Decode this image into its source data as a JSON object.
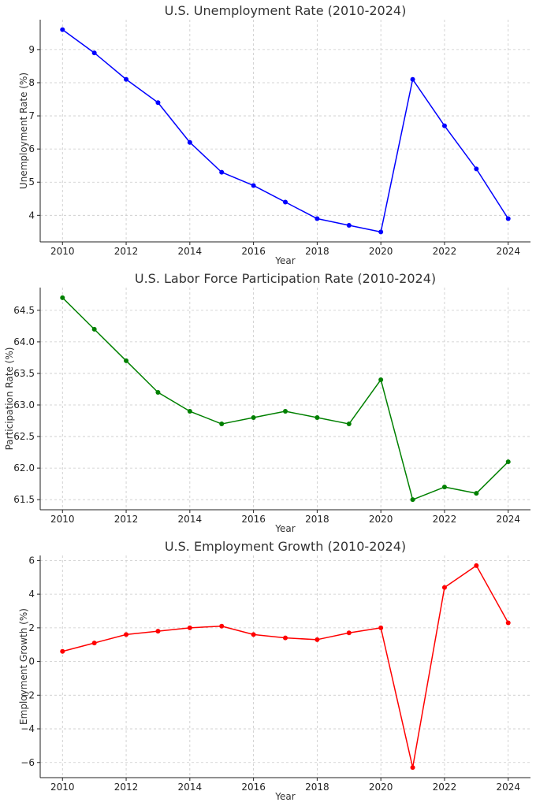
{
  "chart_data": [
    {
      "type": "line",
      "title": "U.S. Unemployment Rate (2010-2024)",
      "xlabel": "Year",
      "ylabel": "Unemployment Rate (%)",
      "x": [
        2010,
        2011,
        2012,
        2013,
        2014,
        2015,
        2016,
        2017,
        2018,
        2019,
        2020,
        2021,
        2022,
        2023,
        2024
      ],
      "series": [
        {
          "values": [
            9.6,
            8.9,
            8.1,
            7.4,
            6.2,
            5.3,
            4.9,
            4.4,
            3.9,
            3.7,
            3.5,
            8.1,
            6.7,
            5.4,
            3.9
          ],
          "color": "#0000ff"
        }
      ],
      "xticks": [
        "2010",
        "2012",
        "2014",
        "2016",
        "2018",
        "2020",
        "2022",
        "2024"
      ],
      "yticks": [
        "4",
        "5",
        "6",
        "7",
        "8",
        "9"
      ],
      "ylim": [
        3.2,
        9.9
      ],
      "xlim": [
        2009.3,
        2024.7
      ],
      "grid": true
    },
    {
      "type": "line",
      "title": "U.S. Labor Force Participation Rate (2010-2024)",
      "xlabel": "Year",
      "ylabel": "Participation Rate (%)",
      "x": [
        2010,
        2011,
        2012,
        2013,
        2014,
        2015,
        2016,
        2017,
        2018,
        2019,
        2020,
        2021,
        2022,
        2023,
        2024
      ],
      "series": [
        {
          "values": [
            64.7,
            64.2,
            63.7,
            63.2,
            62.9,
            62.7,
            62.8,
            62.9,
            62.8,
            62.7,
            63.4,
            61.5,
            61.7,
            61.6,
            62.1
          ],
          "color": "#008000"
        }
      ],
      "xticks": [
        "2010",
        "2012",
        "2014",
        "2016",
        "2018",
        "2020",
        "2022",
        "2024"
      ],
      "yticks": [
        "61.5",
        "62.0",
        "62.5",
        "63.0",
        "63.5",
        "64.0",
        "64.5"
      ],
      "ylim": [
        61.34,
        64.86
      ],
      "xlim": [
        2009.3,
        2024.7
      ],
      "grid": true
    },
    {
      "type": "line",
      "title": "U.S. Employment Growth (2010-2024)",
      "xlabel": "Year",
      "ylabel": "Employment Growth (%)",
      "x": [
        2010,
        2011,
        2012,
        2013,
        2014,
        2015,
        2016,
        2017,
        2018,
        2019,
        2020,
        2021,
        2022,
        2023,
        2024
      ],
      "series": [
        {
          "values": [
            0.6,
            1.1,
            1.6,
            1.8,
            2.0,
            2.1,
            1.6,
            1.4,
            1.3,
            1.7,
            2.0,
            -6.3,
            4.4,
            5.7,
            2.3
          ],
          "color": "#ff0000"
        }
      ],
      "xticks": [
        "2010",
        "2012",
        "2014",
        "2016",
        "2018",
        "2020",
        "2022",
        "2024"
      ],
      "yticks": [
        "−6",
        "−4",
        "−2",
        "0",
        "2",
        "4",
        "6"
      ],
      "ylim": [
        -6.9,
        6.3
      ],
      "xlim": [
        2009.3,
        2024.7
      ],
      "grid": true
    }
  ]
}
